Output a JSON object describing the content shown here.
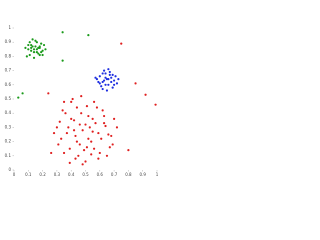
{
  "chart_data": {
    "type": "scatter",
    "xlim": [
      0,
      1
    ],
    "ylim": [
      0,
      1
    ],
    "xticks": [
      0,
      0.1,
      0.2,
      0.3,
      0.4,
      0.5,
      0.6,
      0.7,
      0.8,
      0.9,
      1
    ],
    "yticks": [
      0,
      0.1,
      0.2,
      0.3,
      0.4,
      0.5,
      0.6,
      0.7,
      0.8,
      0.9,
      1
    ],
    "series": [
      {
        "color": "#1a9a1a",
        "x": [
          0.1,
          0.12,
          0.14,
          0.16,
          0.18,
          0.2,
          0.11,
          0.13,
          0.15,
          0.17,
          0.19,
          0.08,
          0.22,
          0.09,
          0.21,
          0.14,
          0.16,
          0.12,
          0.18,
          0.1,
          0.15,
          0.13,
          0.17,
          0.19,
          0.11,
          0.2,
          0.14,
          0.16,
          0.12,
          0.18,
          0.03,
          0.06,
          0.34,
          0.34,
          0.52
        ],
        "y": [
          0.85,
          0.88,
          0.83,
          0.9,
          0.86,
          0.84,
          0.81,
          0.87,
          0.91,
          0.82,
          0.89,
          0.86,
          0.85,
          0.8,
          0.88,
          0.79,
          0.85,
          0.84,
          0.81,
          0.88,
          0.87,
          0.92,
          0.86,
          0.83,
          0.9,
          0.81,
          0.85,
          0.83,
          0.86,
          0.87,
          0.51,
          0.54,
          0.97,
          0.77,
          0.95
        ]
      },
      {
        "color": "#1f2fe0",
        "x": [
          0.58,
          0.6,
          0.62,
          0.64,
          0.66,
          0.68,
          0.7,
          0.72,
          0.61,
          0.63,
          0.65,
          0.67,
          0.69,
          0.71,
          0.59,
          0.62,
          0.64,
          0.66,
          0.68,
          0.7,
          0.57,
          0.73,
          0.63,
          0.65,
          0.67,
          0.6,
          0.69,
          0.64,
          0.66,
          0.62
        ],
        "y": [
          0.64,
          0.66,
          0.62,
          0.68,
          0.6,
          0.65,
          0.63,
          0.61,
          0.59,
          0.7,
          0.64,
          0.67,
          0.58,
          0.66,
          0.62,
          0.57,
          0.65,
          0.71,
          0.62,
          0.6,
          0.65,
          0.64,
          0.63,
          0.56,
          0.69,
          0.61,
          0.67,
          0.6,
          0.64,
          0.68
        ]
      },
      {
        "color": "#e02020",
        "x": [
          0.3,
          0.33,
          0.36,
          0.39,
          0.42,
          0.45,
          0.48,
          0.51,
          0.54,
          0.57,
          0.6,
          0.63,
          0.66,
          0.69,
          0.72,
          0.31,
          0.34,
          0.37,
          0.4,
          0.43,
          0.46,
          0.49,
          0.52,
          0.55,
          0.58,
          0.61,
          0.64,
          0.67,
          0.7,
          0.28,
          0.32,
          0.35,
          0.38,
          0.41,
          0.44,
          0.47,
          0.5,
          0.53,
          0.56,
          0.59,
          0.62,
          0.65,
          0.68,
          0.35,
          0.39,
          0.43,
          0.47,
          0.51,
          0.55,
          0.59,
          0.63,
          0.4,
          0.44,
          0.48,
          0.52,
          0.56,
          0.42,
          0.46,
          0.5,
          0.54,
          0.24,
          0.75,
          0.85,
          0.92,
          0.99,
          0.26,
          0.8
        ],
        "y": [
          0.3,
          0.22,
          0.4,
          0.15,
          0.35,
          0.1,
          0.28,
          0.45,
          0.2,
          0.33,
          0.12,
          0.38,
          0.25,
          0.18,
          0.3,
          0.18,
          0.42,
          0.26,
          0.48,
          0.08,
          0.32,
          0.14,
          0.38,
          0.27,
          0.44,
          0.22,
          0.31,
          0.16,
          0.36,
          0.26,
          0.34,
          0.12,
          0.3,
          0.5,
          0.2,
          0.4,
          0.06,
          0.3,
          0.15,
          0.26,
          0.42,
          0.1,
          0.24,
          0.48,
          0.05,
          0.24,
          0.52,
          0.16,
          0.36,
          0.08,
          0.33,
          0.36,
          0.44,
          0.04,
          0.22,
          0.48,
          0.28,
          0.18,
          0.32,
          0.11,
          0.54,
          0.89,
          0.61,
          0.53,
          0.46,
          0.12,
          0.14
        ]
      }
    ]
  }
}
